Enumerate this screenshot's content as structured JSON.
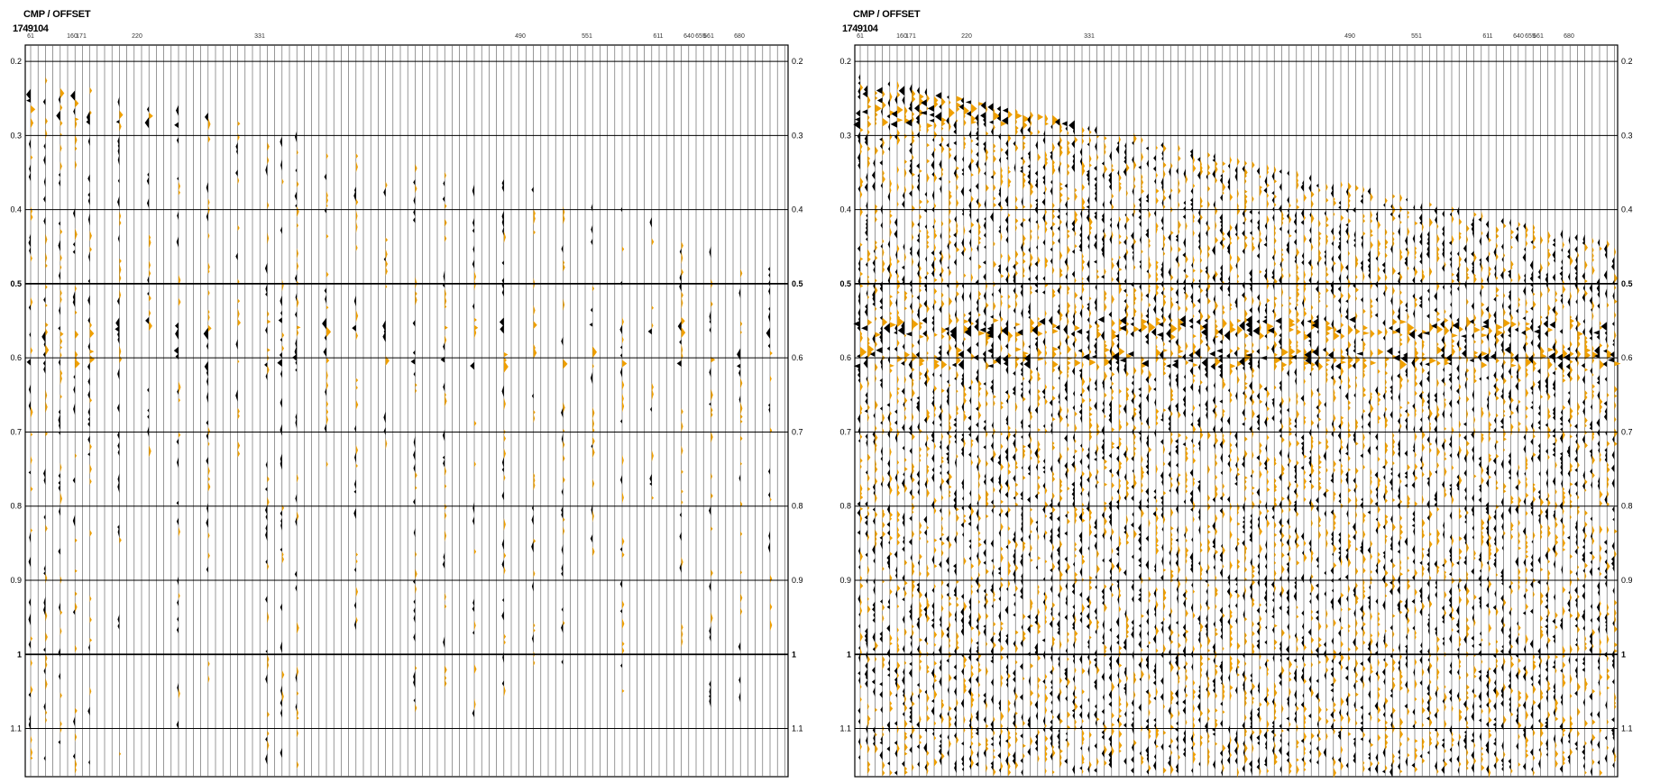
{
  "panels": [
    {
      "id": "left",
      "header_title": "CMP / OFFSET",
      "cmp_number": "1749104"
    },
    {
      "id": "right",
      "header_title": "CMP / OFFSET",
      "cmp_number": "1749104"
    }
  ],
  "chart_data": [
    {
      "type": "seismic-wiggle",
      "title": "CMP / OFFSET",
      "offset_ticks": [
        "61",
        "160",
        "171",
        "220",
        "331",
        "490",
        "551",
        "611",
        "640",
        "655",
        "661",
        "680"
      ],
      "time_ticks": [
        "0.2",
        "0.3",
        "0.4",
        "0.5",
        "0.6",
        "0.7",
        "0.8",
        "0.9",
        "1",
        "1.1"
      ],
      "time_range": [
        0.178,
        1.165
      ],
      "trace_coverage": "sparse",
      "bold_time_lines": [
        "0.5",
        "1"
      ],
      "positive_fill_color": "#f0a000",
      "negative_fill_color": "#000000",
      "event_times": [
        0.25,
        0.275,
        0.56,
        0.6
      ]
    },
    {
      "type": "seismic-wiggle",
      "title": "CMP / OFFSET",
      "offset_ticks": [
        "61",
        "160",
        "171",
        "220",
        "331",
        "490",
        "551",
        "611",
        "640",
        "655",
        "661",
        "680"
      ],
      "time_ticks": [
        "0.2",
        "0.3",
        "0.4",
        "0.5",
        "0.6",
        "0.7",
        "0.8",
        "0.9",
        "1",
        "1.1"
      ],
      "time_range": [
        0.178,
        1.165
      ],
      "trace_coverage": "dense",
      "bold_time_lines": [
        "0.5",
        "1"
      ],
      "positive_fill_color": "#f0a000",
      "negative_fill_color": "#000000",
      "event_times": [
        0.25,
        0.275,
        0.56,
        0.6
      ]
    }
  ]
}
